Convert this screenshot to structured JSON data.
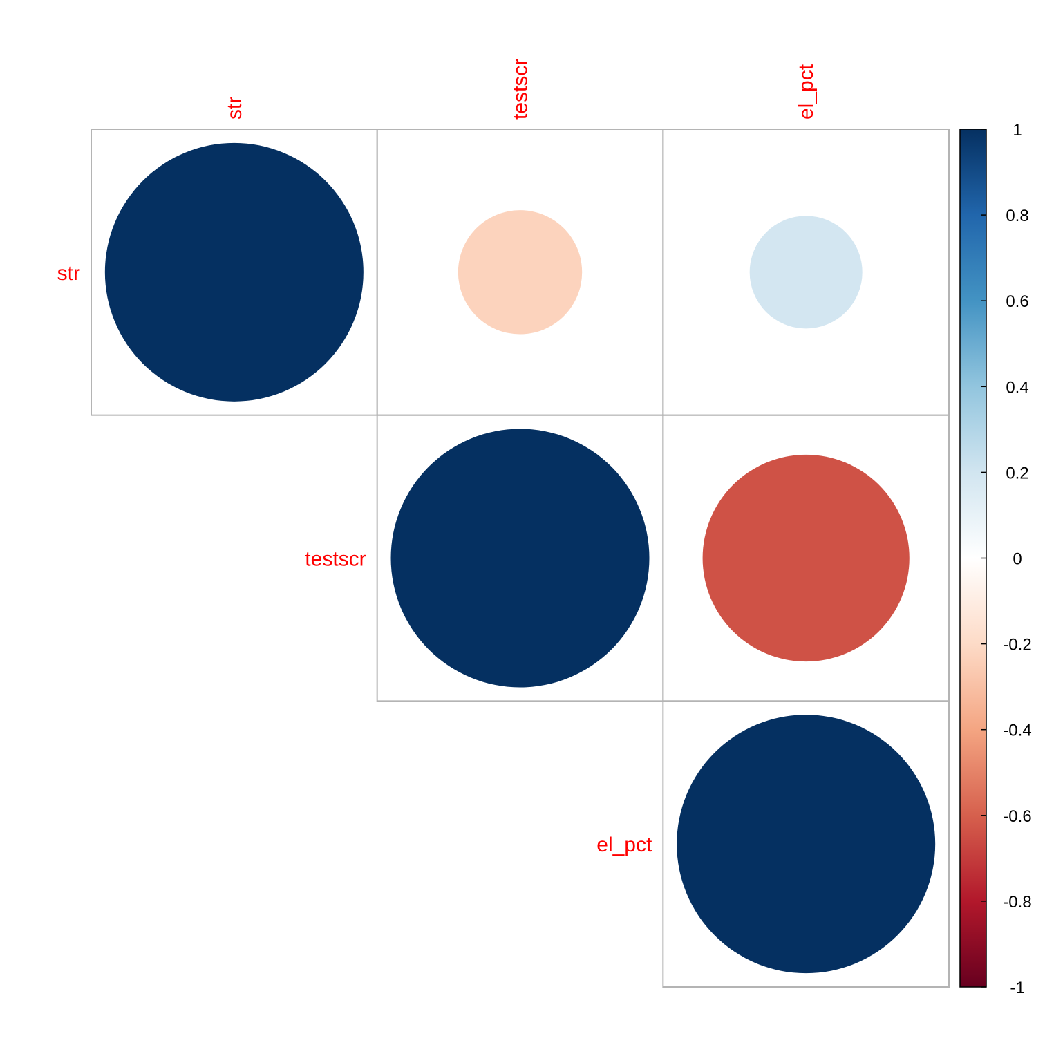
{
  "chart_data": {
    "type": "heatmap",
    "variant": "correlation-matrix-circles-upper",
    "variables": [
      "str",
      "testscr",
      "el_pct"
    ],
    "values": [
      [
        1.0,
        -0.23,
        0.19
      ],
      [
        -0.23,
        1.0,
        -0.64
      ],
      [
        0.19,
        -0.64,
        1.0
      ]
    ],
    "shown_triangle": "upper",
    "label_color": "#ff0000",
    "grid_color": "#b4b4b4",
    "colorbar": {
      "range": [
        -1,
        1
      ],
      "ticks": [
        "1",
        "0.8",
        "0.6",
        "0.4",
        "0.2",
        "0",
        "-0.2",
        "-0.4",
        "-0.6",
        "-0.8",
        "-1"
      ],
      "tick_values": [
        1,
        0.8,
        0.6,
        0.4,
        0.2,
        0,
        -0.2,
        -0.4,
        -0.6,
        -0.8,
        -1
      ],
      "placement": "right",
      "palette": [
        "#67001f",
        "#b2182b",
        "#d6604d",
        "#f4a582",
        "#fddbc7",
        "#ffffff",
        "#d1e5f0",
        "#92c5de",
        "#4393c3",
        "#2166ac",
        "#053061"
      ]
    }
  }
}
